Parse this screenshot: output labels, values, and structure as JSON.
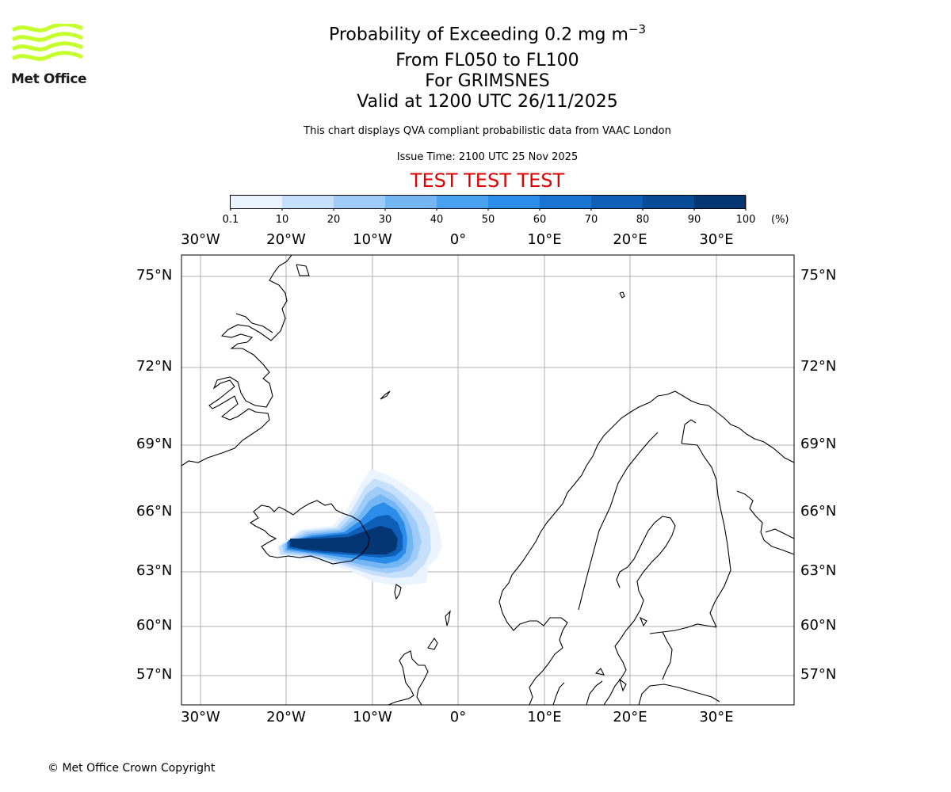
{
  "header": {
    "title_main": "Probability of Exceeding 0.2 mg m",
    "title_sup": "−3",
    "level_range": "From FL050 to FL100",
    "volcano": "For GRIMSNES",
    "valid_time": "Valid at 1200 UTC 26/11/2025",
    "description": "This chart displays QVA compliant probabilistic data from VAAC London",
    "issue_time": "Issue Time: 2100 UTC 25 Nov 2025",
    "test_banner": "TEST TEST TEST"
  },
  "logo": {
    "text": "Met Office",
    "color": "#c6ff2e"
  },
  "colorbar": {
    "unit": "(%)",
    "ticks": [
      "0.1",
      "10",
      "20",
      "30",
      "40",
      "50",
      "60",
      "70",
      "80",
      "90",
      "100"
    ],
    "colors": [
      "#eaf3fe",
      "#c6e0fc",
      "#9ecbf8",
      "#74b5f4",
      "#4aa0f0",
      "#2b8de9",
      "#1a75d2",
      "#0f5fb8",
      "#084c98",
      "#033672"
    ]
  },
  "map": {
    "lon_labels": [
      "30°W",
      "20°W",
      "10°W",
      "0°",
      "10°E",
      "20°E",
      "30°E"
    ],
    "lat_labels": [
      "75°N",
      "72°N",
      "69°N",
      "66°N",
      "63°N",
      "60°N",
      "57°N"
    ]
  },
  "footer": {
    "copyright": "© Met Office Crown Copyright"
  }
}
